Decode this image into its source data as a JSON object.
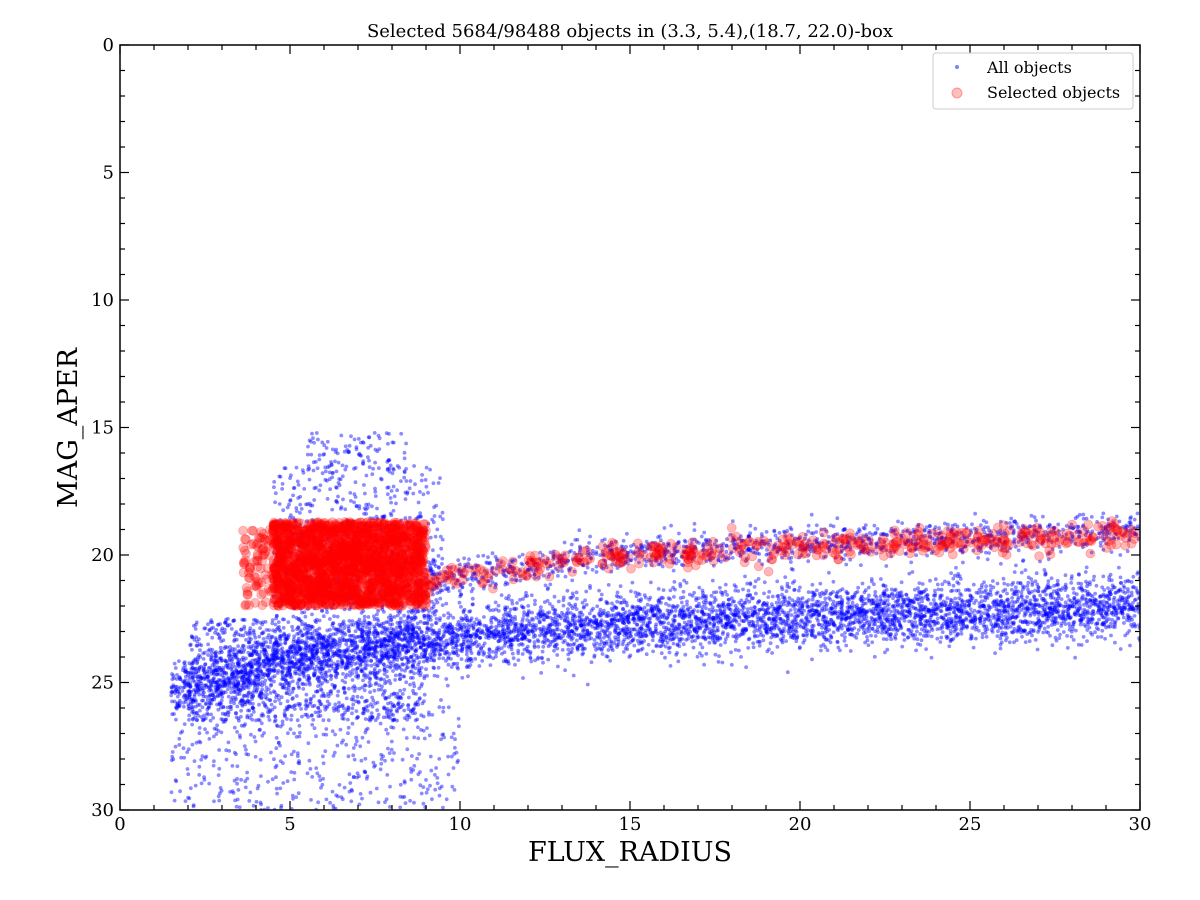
{
  "chart_data": {
    "type": "scatter",
    "title": "Selected 5684/98488 objects in (3.3, 5.4),(18.7, 22.0)-box",
    "xlabel": "FLUX_RADIUS",
    "ylabel": "MAG_APER",
    "xlim": [
      0,
      30
    ],
    "ylim": [
      30,
      0
    ],
    "y_inverted": true,
    "xticks": [
      0,
      5,
      10,
      15,
      20,
      25,
      30
    ],
    "yticks": [
      0,
      5,
      10,
      15,
      20,
      25,
      30
    ],
    "xtick_labels": [
      "0",
      "5",
      "10",
      "15",
      "20",
      "25",
      "30"
    ],
    "ytick_labels": [
      "0",
      "5",
      "10",
      "15",
      "20",
      "25",
      "30"
    ],
    "grid": false,
    "legend_position": "top-right",
    "legend": [
      "All objects",
      "Selected objects"
    ],
    "series": [
      {
        "name": "All objects",
        "color": "#0000ff",
        "marker": "small dot",
        "total_count": 98488,
        "regions": [
          {
            "desc": "dense faint locus",
            "x_range": [
              1.5,
              30
            ],
            "y_at_x": [
              [
                2,
                25.2
              ],
              [
                5,
                24.0
              ],
              [
                10,
                23.2
              ],
              [
                15,
                22.7
              ],
              [
                20,
                22.4
              ],
              [
                30,
                22.0
              ]
            ],
            "y_spread": 1.2,
            "weight": 0.62
          },
          {
            "desc": "compact core",
            "x_range": [
              2,
              9
            ],
            "y_range": [
              22.5,
              26.5
            ],
            "weight": 0.12
          },
          {
            "desc": "faint tail",
            "x_range": [
              1.5,
              10
            ],
            "y_range": [
              25.5,
              30
            ],
            "weight": 0.05
          },
          {
            "desc": "stellar sequence",
            "x_range": [
              4.5,
              9.5
            ],
            "y_range": [
              16.5,
              22.5
            ],
            "weight": 0.06
          },
          {
            "desc": "bright arc",
            "x_range": [
              5.5,
              8.5
            ],
            "y_range": [
              15.2,
              16.7
            ],
            "weight": 0.01
          },
          {
            "desc": "extended upper branch",
            "x_range": [
              9,
              30
            ],
            "y_at_x": [
              [
                9,
                21.0
              ],
              [
                15,
                19.9
              ],
              [
                20,
                19.6
              ],
              [
                30,
                19.0
              ]
            ],
            "y_spread": 0.7,
            "weight": 0.14
          }
        ]
      },
      {
        "name": "Selected objects",
        "color": "#ff0000",
        "marker": "circle",
        "count": 5684,
        "selection_box": {
          "x": [
            3.3,
            5.4
          ],
          "y": [
            18.7,
            22.0
          ]
        },
        "regions": [
          {
            "desc": "dense block",
            "x_range": [
              4.5,
              9.0
            ],
            "y_range": [
              18.7,
              22.0
            ],
            "weight": 0.8
          },
          {
            "desc": "left edge",
            "x_range": [
              3.6,
              4.5
            ],
            "y_range": [
              19.0,
              22.0
            ],
            "weight": 0.03
          },
          {
            "desc": "upper branch",
            "x_range": [
              9,
              30
            ],
            "y_at_x": [
              [
                9,
                21.0
              ],
              [
                15,
                20.0
              ],
              [
                20,
                19.7
              ],
              [
                30,
                19.2
              ]
            ],
            "y_spread": 0.55,
            "weight": 0.17
          }
        ]
      }
    ]
  }
}
